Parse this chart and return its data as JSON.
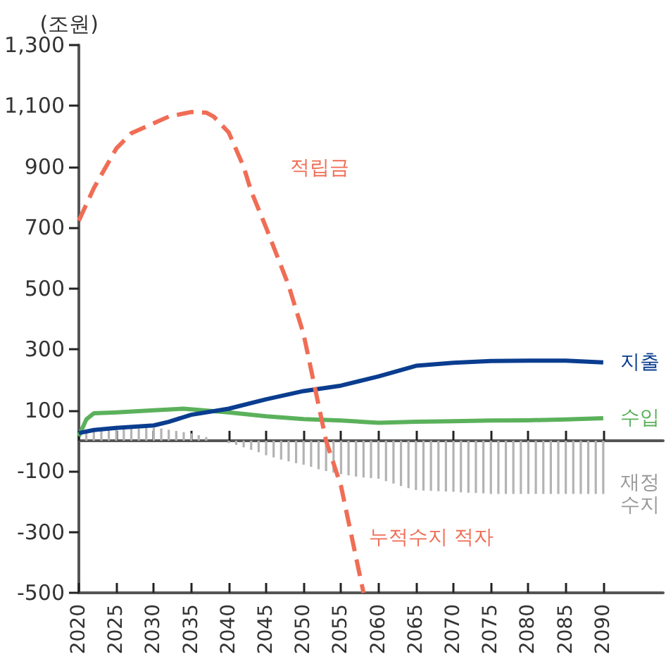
{
  "chart_data": {
    "type": "line",
    "ylabel": "(조원)",
    "xlim": [
      2020,
      2098
    ],
    "xticks": [
      2020,
      2025,
      2030,
      2035,
      2040,
      2045,
      2050,
      2055,
      2060,
      2065,
      2070,
      2075,
      2080,
      2085,
      2090
    ],
    "ylim": [
      -500,
      1300
    ],
    "yticks": [
      -500,
      -300,
      -100,
      100,
      300,
      500,
      700,
      900,
      {
        "value": 1100,
        "label": "1,100"
      },
      {
        "value": 1300,
        "label": "1,300"
      }
    ],
    "grid": false,
    "marker": "none",
    "series": [
      {
        "name": "재정수지",
        "type": "bar",
        "color": "#b3b3b3",
        "x": [
          2021,
          2022,
          2023,
          2024,
          2025,
          2026,
          2027,
          2028,
          2029,
          2030,
          2031,
          2032,
          2033,
          2034,
          2035,
          2036,
          2037,
          2038,
          2039,
          2040,
          2041,
          2042,
          2043,
          2044,
          2045,
          2046,
          2047,
          2048,
          2049,
          2050,
          2051,
          2052,
          2053,
          2054,
          2055,
          2056,
          2057,
          2058,
          2059,
          2060,
          2061,
          2062,
          2063,
          2064,
          2065,
          2066,
          2067,
          2068,
          2069,
          2070,
          2071,
          2072,
          2073,
          2074,
          2075,
          2076,
          2077,
          2078,
          2079,
          2080,
          2081,
          2082,
          2083,
          2084,
          2085,
          2086,
          2087,
          2088,
          2089,
          2090
        ],
        "values": [
          32,
          33,
          34,
          35,
          37,
          38,
          39,
          40,
          41,
          42,
          40,
          36,
          32,
          28,
          24,
          18,
          12,
          null,
          null,
          -8,
          -14,
          -22,
          -30,
          -38,
          -48,
          -55,
          -62,
          -68,
          -74,
          -79,
          -86,
          -94,
          -100,
          -105,
          -110,
          -114,
          -118,
          -121,
          -123,
          -125,
          -133,
          -141,
          -149,
          -156,
          -162,
          -164,
          -165,
          -166,
          -167,
          -168,
          -170,
          -171,
          -172,
          -173,
          -175,
          -175,
          -175,
          -175,
          -175,
          -175,
          -175,
          -175,
          -175,
          -175,
          -175,
          -175,
          -175,
          -175,
          -175,
          -175
        ]
      },
      {
        "name": "수입",
        "color": "#5bb15b",
        "x": [
          2020,
          2021,
          2022,
          2025,
          2030,
          2034,
          2040,
          2045,
          2050,
          2055,
          2060,
          2065,
          2070,
          2075,
          2080,
          2085,
          2090
        ],
        "values": [
          15,
          70,
          90,
          93,
          100,
          105,
          93,
          80,
          71,
          66,
          59,
          62,
          64,
          66,
          67,
          70,
          74
        ]
      },
      {
        "name": "지출",
        "color": "#0a3d8f",
        "x": [
          2020,
          2022,
          2025,
          2030,
          2032,
          2035,
          2040,
          2045,
          2050,
          2055,
          2060,
          2065,
          2070,
          2075,
          2080,
          2085,
          2090
        ],
        "values": [
          25,
          35,
          42,
          50,
          62,
          85,
          105,
          136,
          163,
          181,
          211,
          246,
          256,
          262,
          263,
          263,
          257
        ]
      },
      {
        "name": "적립금",
        "color": "#f06d55",
        "line_style": "dashed",
        "x": [
          2020,
          2022,
          2025,
          2027,
          2030,
          2032,
          2035,
          2037,
          2038,
          2040,
          2042,
          2043,
          2045,
          2048,
          2050,
          2053,
          2055,
          2058
        ],
        "values": [
          723,
          830,
          960,
          1010,
          1043,
          1065,
          1080,
          1078,
          1065,
          1013,
          900,
          820,
          700,
          510,
          350,
          0,
          -150,
          -500
        ]
      }
    ],
    "annotations": [
      "누적수지 적자"
    ]
  }
}
